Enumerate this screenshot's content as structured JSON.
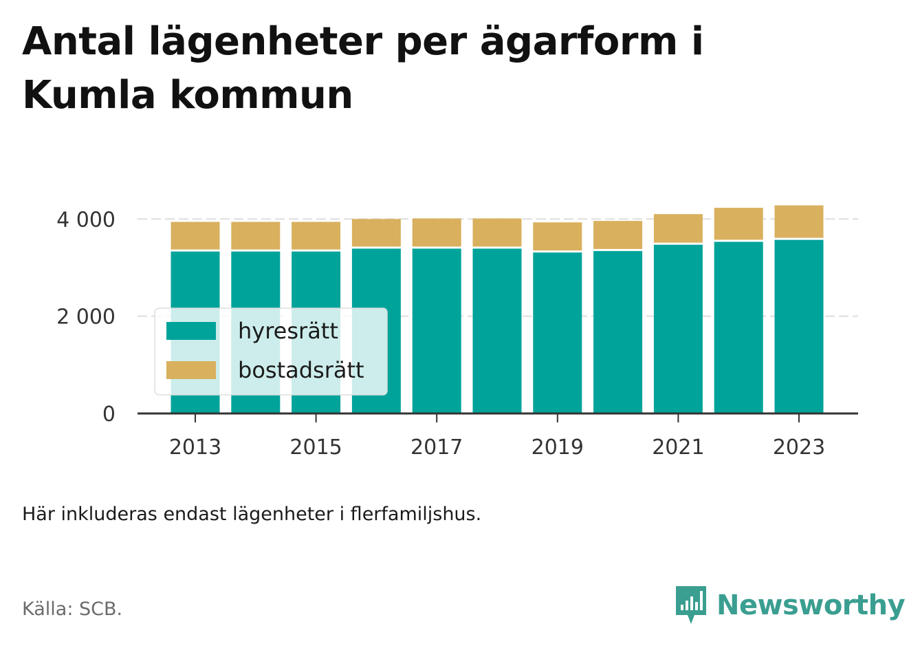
{
  "title": "Antal lägenheter per ägarform i Kumla kommun",
  "note": "Här inkluderas endast lägenheter i flerfamiljshus.",
  "source": "Källa: SCB.",
  "brand": {
    "name": "Newsworthy",
    "icon": "newsworthy-logo-icon",
    "color": "#3a9e90"
  },
  "chart_data": {
    "type": "bar",
    "stacked": true,
    "title": "Antal lägenheter per ägarform i Kumla kommun",
    "xlabel": "",
    "ylabel": "",
    "categories": [
      "2013",
      "2014",
      "2015",
      "2016",
      "2017",
      "2018",
      "2019",
      "2020",
      "2021",
      "2022",
      "2023"
    ],
    "x_tick_labels": [
      "2013",
      "2015",
      "2017",
      "2019",
      "2021",
      "2023"
    ],
    "y_tick_labels": [
      "0",
      "2 000",
      "4 000"
    ],
    "y_ticks": [
      0,
      2000,
      4000
    ],
    "ylim": [
      0,
      4400
    ],
    "grid": true,
    "legend_position": "left-middle",
    "series": [
      {
        "name": "hyresrätt",
        "color": "#00a39a",
        "values": [
          3330,
          3330,
          3330,
          3390,
          3390,
          3390,
          3310,
          3340,
          3470,
          3530,
          3570
        ]
      },
      {
        "name": "bostadsrätt",
        "color": "#d9b05e",
        "values": [
          610,
          610,
          610,
          610,
          620,
          620,
          620,
          620,
          630,
          700,
          710
        ]
      }
    ]
  }
}
